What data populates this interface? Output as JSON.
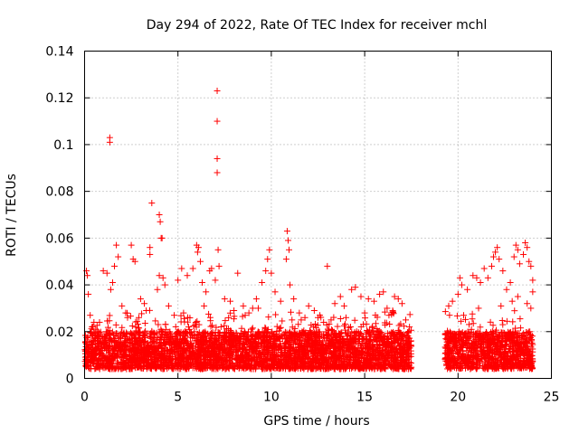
{
  "chart_data": {
    "type": "scatter",
    "title": "Day 294 of 2022, Rate Of TEC Index for receiver mchl",
    "xlabel": "GPS time / hours",
    "ylabel": "ROTI / TECUs",
    "xlim": [
      0,
      25
    ],
    "ylim": [
      0,
      0.14
    ],
    "x_ticks": [
      0,
      5,
      10,
      15,
      20,
      25
    ],
    "x_tick_labels": [
      "0",
      "5",
      "10",
      "15",
      "20",
      "25"
    ],
    "y_ticks": [
      0,
      0.02,
      0.04,
      0.06,
      0.08,
      0.1,
      0.12,
      0.14
    ],
    "y_tick_labels": [
      "0",
      "0.02",
      "0.04",
      "0.06",
      "0.08",
      "0.1",
      "0.12",
      "0.14"
    ],
    "grid": true,
    "marker": "+",
    "color": "#ff0000",
    "data_gap_hours": [
      17.5,
      19.3
    ],
    "series": [
      {
        "name": "ROTI",
        "points": [
          [
            0.1,
            0.046
          ],
          [
            0.15,
            0.044
          ],
          [
            0.2,
            0.036
          ],
          [
            0.3,
            0.027
          ],
          [
            0.4,
            0.022
          ],
          [
            0.5,
            0.024
          ],
          [
            1.0,
            0.046
          ],
          [
            1.2,
            0.045
          ],
          [
            1.35,
            0.103
          ],
          [
            1.35,
            0.101
          ],
          [
            1.4,
            0.038
          ],
          [
            1.5,
            0.041
          ],
          [
            1.6,
            0.048
          ],
          [
            1.7,
            0.057
          ],
          [
            1.8,
            0.052
          ],
          [
            2.0,
            0.031
          ],
          [
            2.2,
            0.028
          ],
          [
            2.5,
            0.057
          ],
          [
            2.6,
            0.051
          ],
          [
            2.7,
            0.05
          ],
          [
            3.0,
            0.034
          ],
          [
            3.2,
            0.032
          ],
          [
            3.5,
            0.056
          ],
          [
            3.5,
            0.053
          ],
          [
            3.6,
            0.075
          ],
          [
            3.9,
            0.038
          ],
          [
            4.0,
            0.044
          ],
          [
            4.0,
            0.07
          ],
          [
            4.05,
            0.067
          ],
          [
            4.1,
            0.06
          ],
          [
            4.15,
            0.06
          ],
          [
            4.2,
            0.043
          ],
          [
            4.3,
            0.04
          ],
          [
            4.5,
            0.031
          ],
          [
            4.8,
            0.027
          ],
          [
            5.0,
            0.042
          ],
          [
            5.2,
            0.047
          ],
          [
            5.5,
            0.044
          ],
          [
            5.8,
            0.047
          ],
          [
            6.0,
            0.057
          ],
          [
            6.05,
            0.054
          ],
          [
            6.1,
            0.056
          ],
          [
            6.2,
            0.05
          ],
          [
            6.3,
            0.041
          ],
          [
            6.5,
            0.037
          ],
          [
            6.7,
            0.046
          ],
          [
            6.8,
            0.047
          ],
          [
            7.0,
            0.042
          ],
          [
            7.1,
            0.123
          ],
          [
            7.1,
            0.11
          ],
          [
            7.1,
            0.094
          ],
          [
            7.1,
            0.088
          ],
          [
            7.15,
            0.055
          ],
          [
            7.2,
            0.048
          ],
          [
            7.5,
            0.034
          ],
          [
            7.8,
            0.033
          ],
          [
            8.2,
            0.045
          ],
          [
            8.5,
            0.031
          ],
          [
            8.8,
            0.028
          ],
          [
            9.0,
            0.03
          ],
          [
            9.2,
            0.034
          ],
          [
            9.5,
            0.041
          ],
          [
            9.7,
            0.046
          ],
          [
            9.8,
            0.051
          ],
          [
            9.9,
            0.055
          ],
          [
            10.0,
            0.045
          ],
          [
            10.2,
            0.037
          ],
          [
            10.5,
            0.033
          ],
          [
            10.8,
            0.051
          ],
          [
            10.85,
            0.063
          ],
          [
            10.9,
            0.059
          ],
          [
            10.95,
            0.055
          ],
          [
            11.0,
            0.04
          ],
          [
            11.2,
            0.034
          ],
          [
            11.5,
            0.028
          ],
          [
            11.8,
            0.026
          ],
          [
            12.0,
            0.031
          ],
          [
            12.3,
            0.029
          ],
          [
            12.5,
            0.026
          ],
          [
            12.8,
            0.024
          ],
          [
            13.0,
            0.048
          ],
          [
            13.4,
            0.032
          ],
          [
            13.7,
            0.035
          ],
          [
            13.9,
            0.031
          ],
          [
            14.3,
            0.038
          ],
          [
            14.5,
            0.039
          ],
          [
            14.8,
            0.035
          ],
          [
            15.2,
            0.034
          ],
          [
            15.5,
            0.033
          ],
          [
            15.8,
            0.036
          ],
          [
            16.0,
            0.037
          ],
          [
            16.2,
            0.03
          ],
          [
            16.5,
            0.029
          ],
          [
            16.6,
            0.035
          ],
          [
            16.8,
            0.034
          ],
          [
            17.0,
            0.032
          ],
          [
            17.2,
            0.025
          ],
          [
            17.4,
            0.022
          ],
          [
            19.5,
            0.031
          ],
          [
            19.7,
            0.033
          ],
          [
            20.0,
            0.036
          ],
          [
            20.1,
            0.043
          ],
          [
            20.2,
            0.04
          ],
          [
            20.5,
            0.038
          ],
          [
            20.8,
            0.044
          ],
          [
            21.0,
            0.043
          ],
          [
            21.2,
            0.041
          ],
          [
            21.4,
            0.047
          ],
          [
            21.6,
            0.043
          ],
          [
            21.8,
            0.048
          ],
          [
            21.9,
            0.052
          ],
          [
            22.0,
            0.054
          ],
          [
            22.1,
            0.056
          ],
          [
            22.2,
            0.051
          ],
          [
            22.4,
            0.046
          ],
          [
            22.6,
            0.038
          ],
          [
            22.8,
            0.041
          ],
          [
            23.0,
            0.052
          ],
          [
            23.1,
            0.057
          ],
          [
            23.2,
            0.055
          ],
          [
            23.3,
            0.049
          ],
          [
            23.5,
            0.053
          ],
          [
            23.6,
            0.058
          ],
          [
            23.7,
            0.056
          ],
          [
            23.8,
            0.05
          ],
          [
            23.9,
            0.048
          ],
          [
            24.0,
            0.042
          ],
          [
            24.0,
            0.037
          ],
          [
            23.9,
            0.03
          ],
          [
            23.7,
            0.032
          ],
          [
            23.2,
            0.035
          ],
          [
            22.9,
            0.033
          ],
          [
            0.6,
            0.021
          ],
          [
            0.8,
            0.024
          ],
          [
            2.3,
            0.026
          ],
          [
            3.3,
            0.029
          ],
          [
            5.3,
            0.028
          ],
          [
            6.4,
            0.031
          ],
          [
            8.0,
            0.029
          ],
          [
            8.6,
            0.027
          ],
          [
            9.3,
            0.03
          ],
          [
            11.6,
            0.025
          ],
          [
            12.6,
            0.027
          ],
          [
            13.2,
            0.025
          ],
          [
            14.0,
            0.026
          ],
          [
            15.0,
            0.028
          ],
          [
            16.3,
            0.027
          ],
          [
            20.3,
            0.027
          ],
          [
            21.1,
            0.03
          ],
          [
            22.3,
            0.031
          ]
        ]
      }
    ]
  }
}
